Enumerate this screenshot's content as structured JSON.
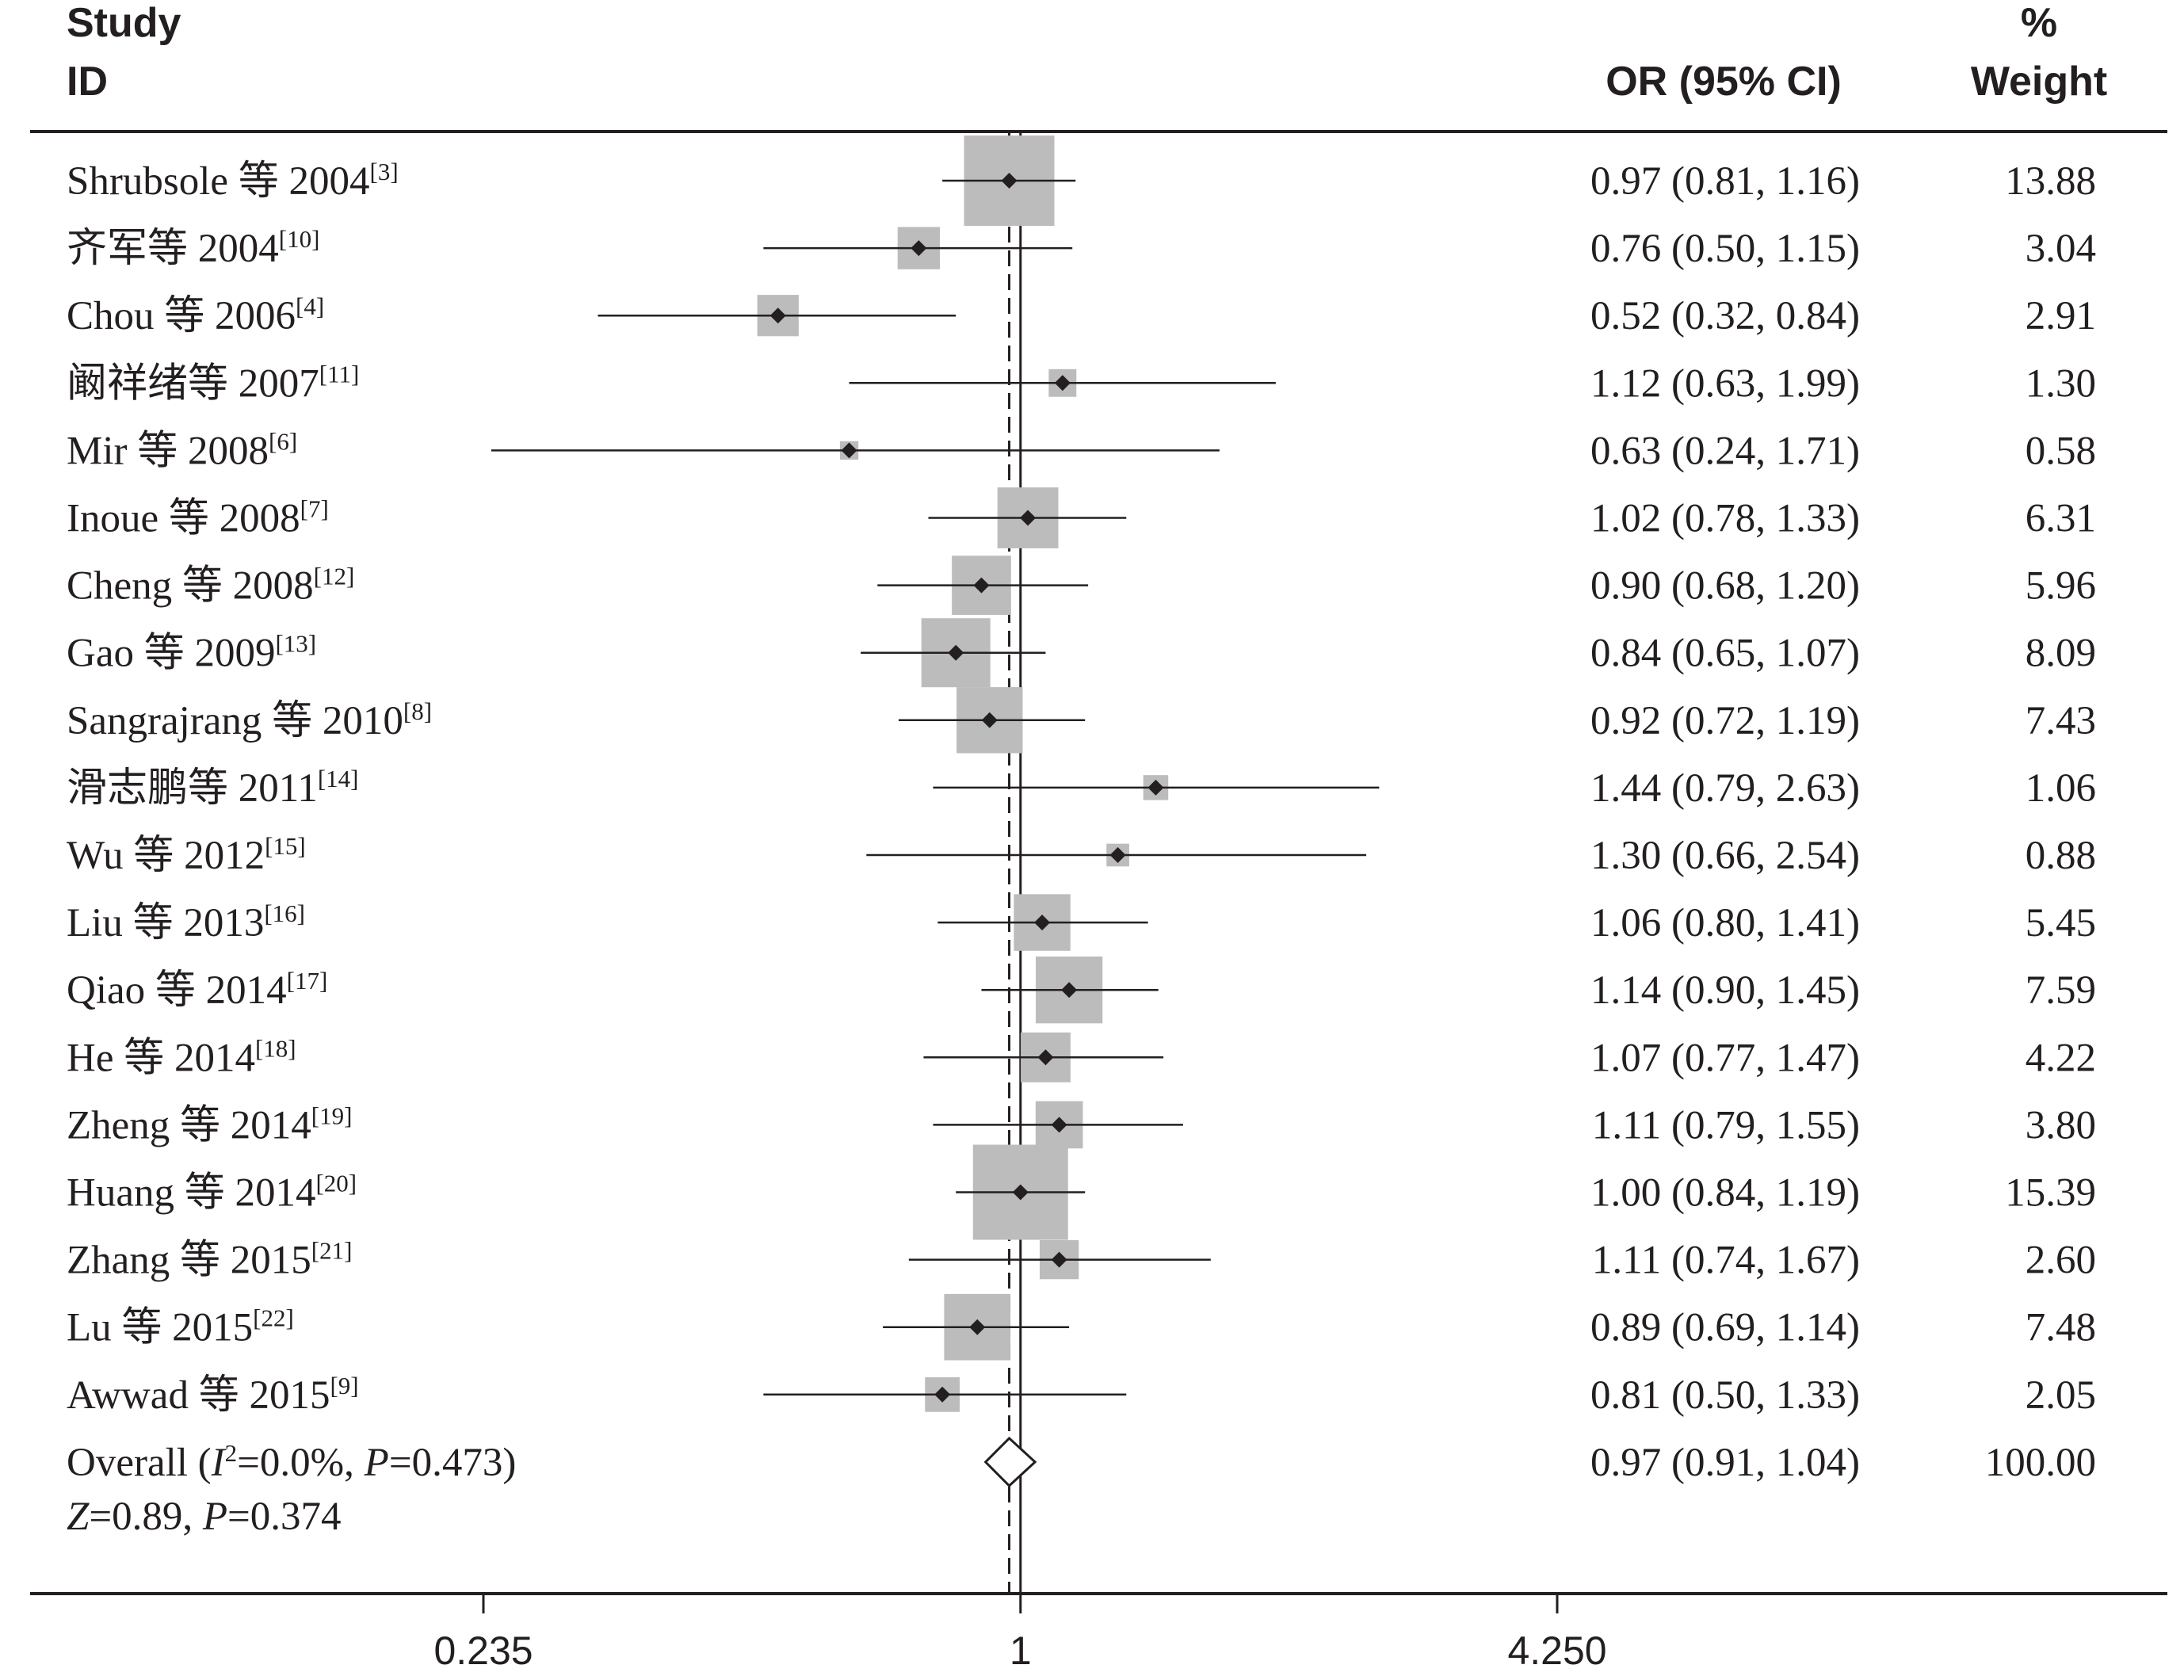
{
  "chart_data": {
    "type": "forest",
    "headers": {
      "study_line1": "Study",
      "study_line2": "ID",
      "or_label": "OR (95% CI)",
      "weight_line1": "%",
      "weight_line2": "Weight"
    },
    "x_scale": "log",
    "x_ticks": [
      {
        "value": 0.235,
        "label": "0.235"
      },
      {
        "value": 1,
        "label": "1"
      },
      {
        "value": 4.25,
        "label": "4.250"
      }
    ],
    "xlim": [
      0.2,
      5.3
    ],
    "null_line": 1,
    "studies": [
      {
        "name": "Shrubsole 等 2004",
        "ref": "[3]",
        "or": 0.97,
        "lo": 0.81,
        "hi": 1.16,
        "ci_text": "0.97 (0.81, 1.16)",
        "weight": 13.88,
        "weight_text": "13.88"
      },
      {
        "name": "齐军等 2004",
        "ref": "[10]",
        "or": 0.76,
        "lo": 0.5,
        "hi": 1.15,
        "ci_text": "0.76 (0.50, 1.15)",
        "weight": 3.04,
        "weight_text": "3.04"
      },
      {
        "name": "Chou 等 2006",
        "ref": "[4]",
        "or": 0.52,
        "lo": 0.32,
        "hi": 0.84,
        "ci_text": "0.52 (0.32, 0.84)",
        "weight": 2.91,
        "weight_text": "2.91"
      },
      {
        "name": "阚祥绪等 2007",
        "ref": "[11]",
        "or": 1.12,
        "lo": 0.63,
        "hi": 1.99,
        "ci_text": "1.12 (0.63, 1.99)",
        "weight": 1.3,
        "weight_text": "1.30"
      },
      {
        "name": "Mir 等 2008",
        "ref": "[6]",
        "or": 0.63,
        "lo": 0.24,
        "hi": 1.71,
        "ci_text": "0.63 (0.24, 1.71)",
        "weight": 0.58,
        "weight_text": "0.58"
      },
      {
        "name": "Inoue 等 2008",
        "ref": "[7]",
        "or": 1.02,
        "lo": 0.78,
        "hi": 1.33,
        "ci_text": "1.02 (0.78, 1.33)",
        "weight": 6.31,
        "weight_text": "6.31"
      },
      {
        "name": "Cheng 等 2008",
        "ref": "[12]",
        "or": 0.9,
        "lo": 0.68,
        "hi": 1.2,
        "ci_text": "0.90 (0.68, 1.20)",
        "weight": 5.96,
        "weight_text": "5.96"
      },
      {
        "name": "Gao 等 2009",
        "ref": "[13]",
        "or": 0.84,
        "lo": 0.65,
        "hi": 1.07,
        "ci_text": "0.84 (0.65, 1.07)",
        "weight": 8.09,
        "weight_text": "8.09"
      },
      {
        "name": "Sangrajrang 等 2010",
        "ref": "[8]",
        "or": 0.92,
        "lo": 0.72,
        "hi": 1.19,
        "ci_text": "0.92 (0.72, 1.19)",
        "weight": 7.43,
        "weight_text": "7.43"
      },
      {
        "name": "滑志鹏等 2011",
        "ref": "[14]",
        "or": 1.44,
        "lo": 0.79,
        "hi": 2.63,
        "ci_text": "1.44 (0.79, 2.63)",
        "weight": 1.06,
        "weight_text": "1.06"
      },
      {
        "name": "Wu 等 2012",
        "ref": "[15]",
        "or": 1.3,
        "lo": 0.66,
        "hi": 2.54,
        "ci_text": "1.30 (0.66, 2.54)",
        "weight": 0.88,
        "weight_text": "0.88"
      },
      {
        "name": "Liu 等 2013",
        "ref": "[16]",
        "or": 1.06,
        "lo": 0.8,
        "hi": 1.41,
        "ci_text": "1.06 (0.80, 1.41)",
        "weight": 5.45,
        "weight_text": "5.45"
      },
      {
        "name": "Qiao 等 2014",
        "ref": "[17]",
        "or": 1.14,
        "lo": 0.9,
        "hi": 1.45,
        "ci_text": "1.14 (0.90, 1.45)",
        "weight": 7.59,
        "weight_text": "7.59"
      },
      {
        "name": "He 等 2014",
        "ref": "[18]",
        "or": 1.07,
        "lo": 0.77,
        "hi": 1.47,
        "ci_text": "1.07 (0.77, 1.47)",
        "weight": 4.22,
        "weight_text": "4.22"
      },
      {
        "name": "Zheng 等 2014",
        "ref": "[19]",
        "or": 1.11,
        "lo": 0.79,
        "hi": 1.55,
        "ci_text": "1.11 (0.79, 1.55)",
        "weight": 3.8,
        "weight_text": "3.80"
      },
      {
        "name": "Huang 等 2014",
        "ref": "[20]",
        "or": 1.0,
        "lo": 0.84,
        "hi": 1.19,
        "ci_text": "1.00 (0.84, 1.19)",
        "weight": 15.39,
        "weight_text": "15.39"
      },
      {
        "name": "Zhang 等 2015",
        "ref": "[21]",
        "or": 1.11,
        "lo": 0.74,
        "hi": 1.67,
        "ci_text": "1.11 (0.74, 1.67)",
        "weight": 2.6,
        "weight_text": "2.60"
      },
      {
        "name": "Lu 等 2015",
        "ref": "[22]",
        "or": 0.89,
        "lo": 0.69,
        "hi": 1.14,
        "ci_text": "0.89 (0.69, 1.14)",
        "weight": 7.48,
        "weight_text": "7.48"
      },
      {
        "name": "Awwad 等 2015",
        "ref": "[9]",
        "or": 0.81,
        "lo": 0.5,
        "hi": 1.33,
        "ci_text": "0.81 (0.50, 1.33)",
        "weight": 2.05,
        "weight_text": "2.05"
      }
    ],
    "overall": {
      "label": "Overall",
      "i2": "0.0%",
      "p_het": "0.473",
      "z": "0.89",
      "p": "0.374",
      "or": 0.97,
      "lo": 0.91,
      "hi": 1.04,
      "ci_text": "0.97 (0.91, 1.04)",
      "weight_text": "100.00"
    },
    "colors": {
      "box": "#bcbcbc",
      "line": "#231f20"
    }
  }
}
